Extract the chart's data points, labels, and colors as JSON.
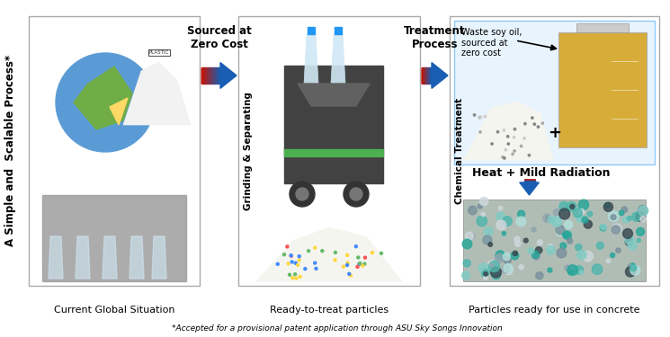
{
  "title_left": "A Simple and  Scalable Process*",
  "panel1_label": "Current Global Situation",
  "panel2_label": "Ready-to-treat particles",
  "panel3_label": "Particles ready for use in concrete",
  "arrow1_top_text": "Sourced at\nZero Cost",
  "arrow2_top_text": "Treatment\nProcess",
  "arrow1_side_text": "Grinding & Separating",
  "arrow2_side_text": "Chemical Treatment",
  "panel3_top_text": "Waste soy oil,\nsourced at\nzero cost",
  "panel3_mid_text": "Heat + Mild Radiation",
  "footnote": "*Accepted for a provisional patent application through ASU Sky Songs Innovation",
  "bg_color": "#ffffff",
  "text_color": "#000000",
  "arrow_red": "#cc1100",
  "arrow_blue": "#1a5fb4",
  "panel_border": "#aaaaaa"
}
